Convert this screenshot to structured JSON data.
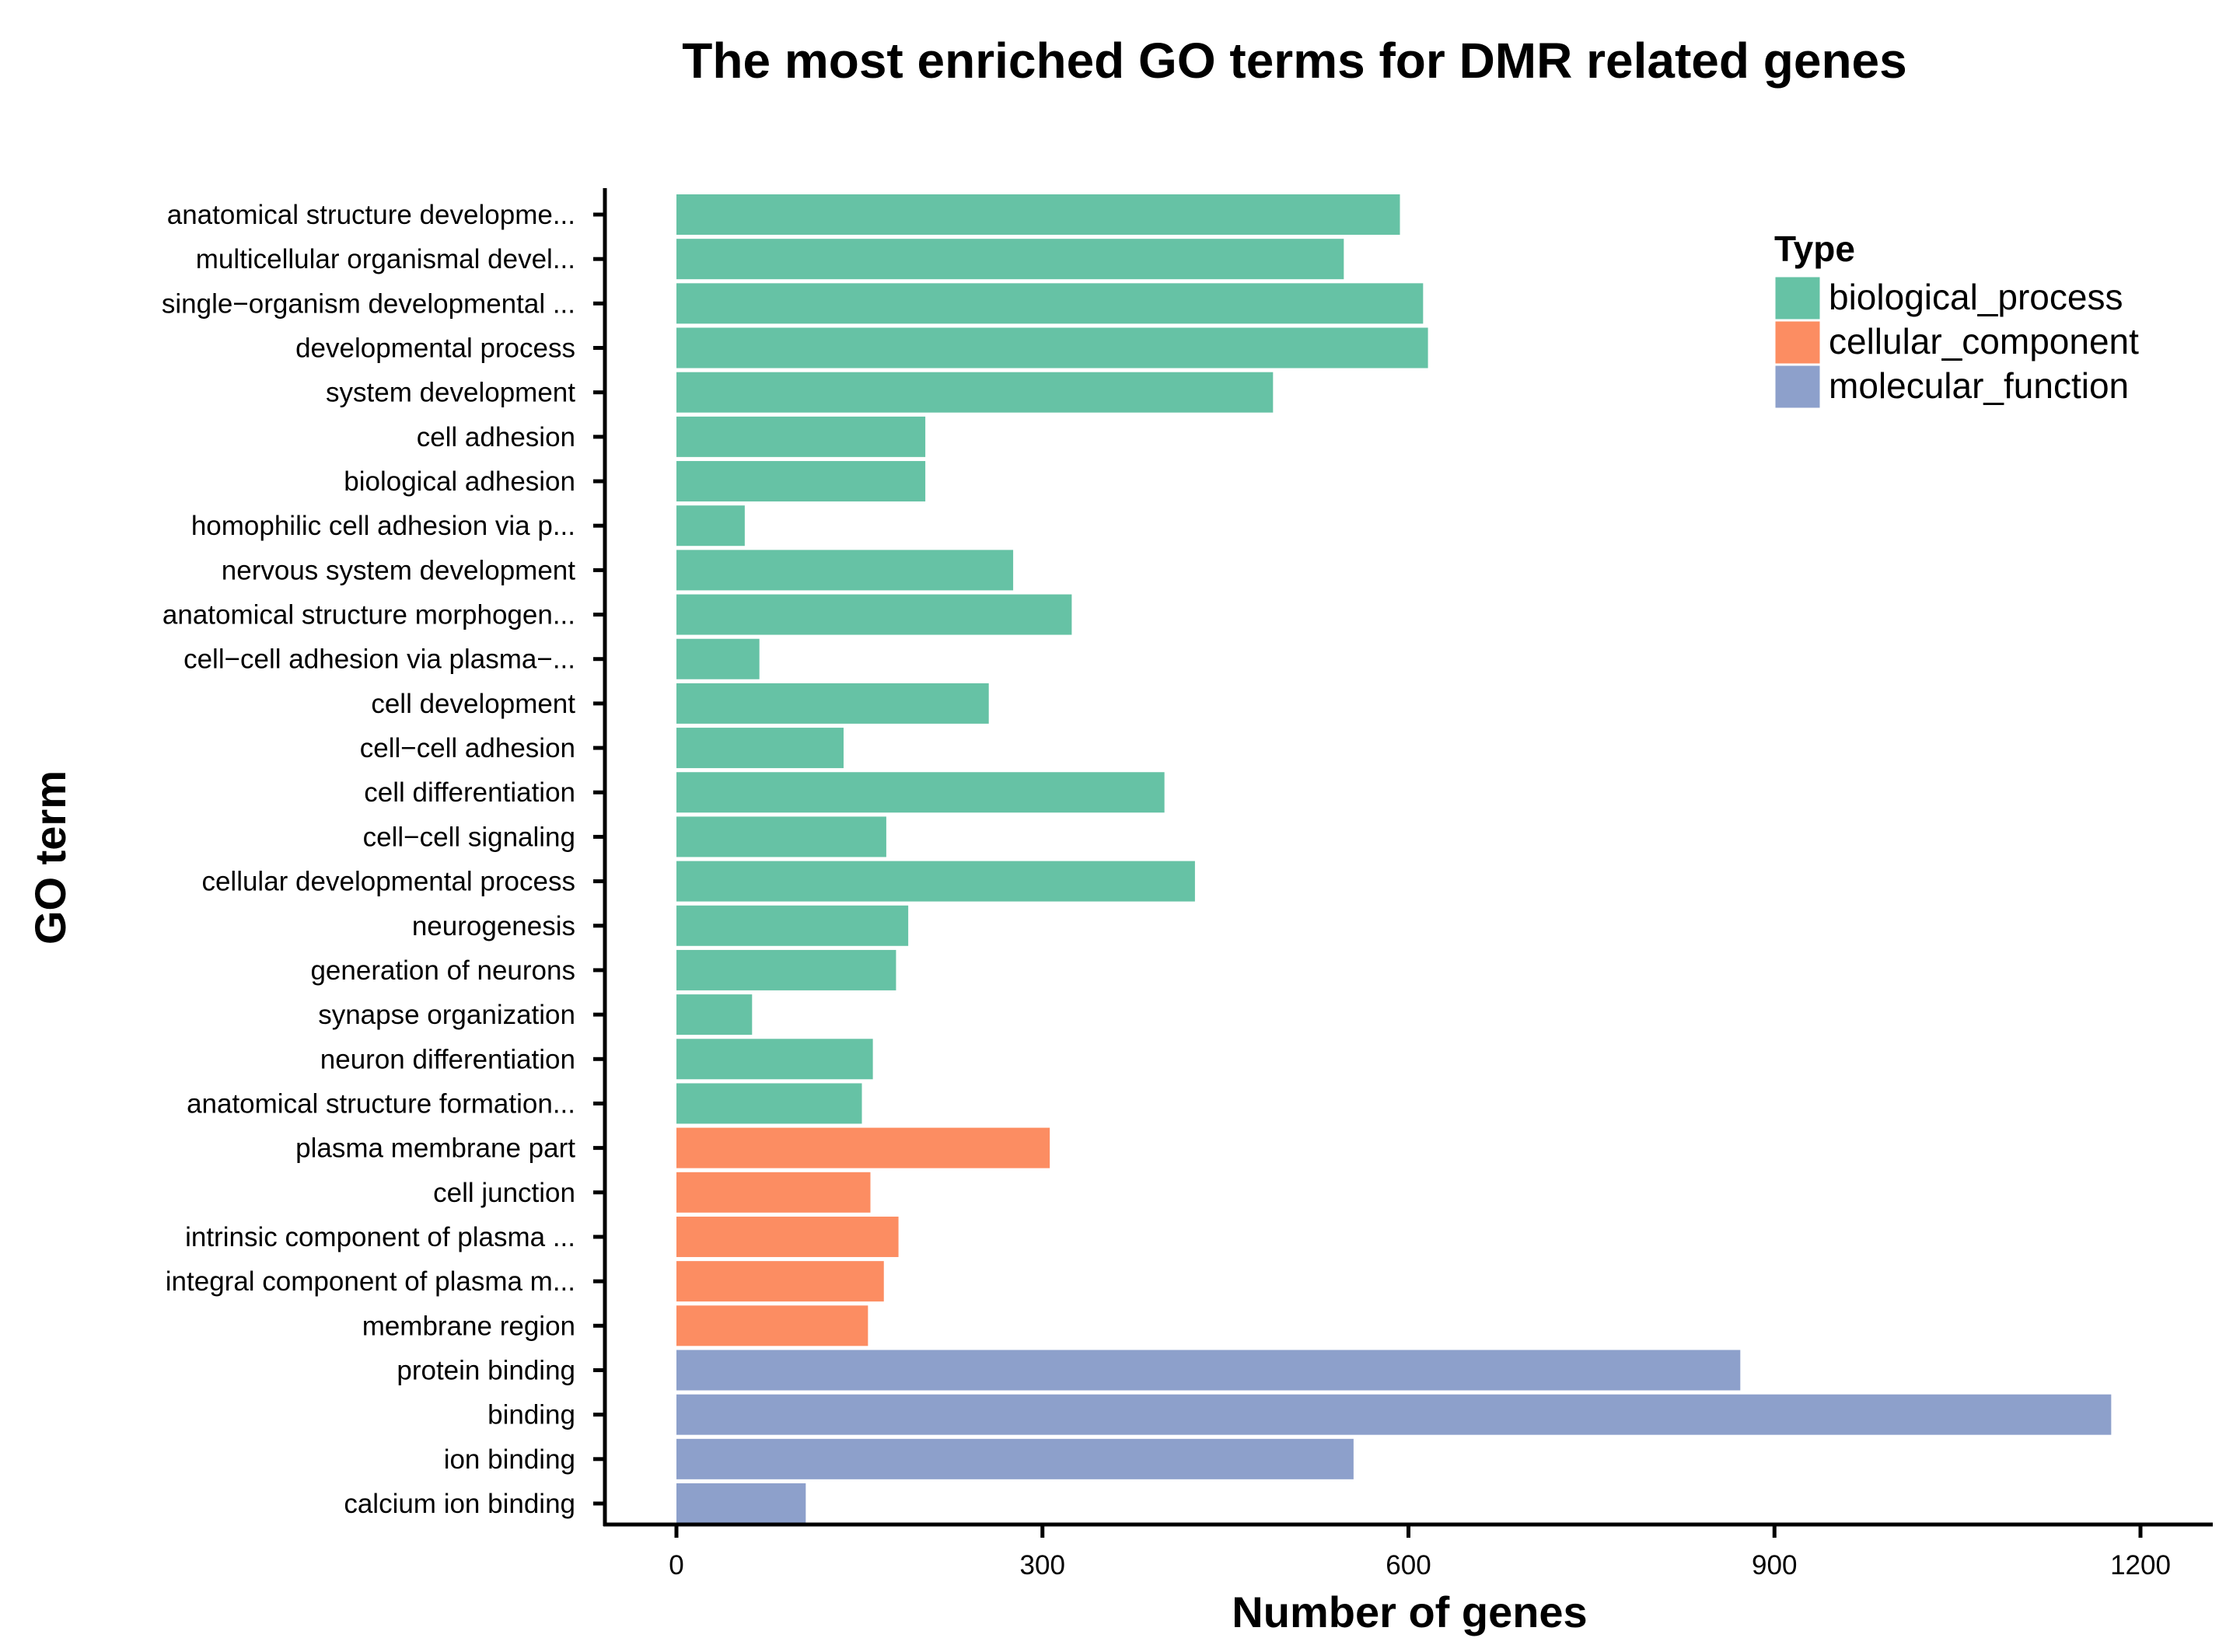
{
  "chart_data": {
    "type": "bar",
    "orientation": "horizontal",
    "title": "The most enriched GO terms for DMR related genes",
    "xlabel": "Number of genes",
    "ylabel": "GO term",
    "xlim": [
      0,
      1200
    ],
    "xticks": [
      "0",
      "300",
      "600",
      "900",
      "1200"
    ],
    "xtick_values": [
      0,
      300,
      600,
      900,
      1200
    ],
    "grid": false,
    "legend": {
      "title": "Type",
      "placement": "top-right",
      "entries": [
        {
          "name": "biological_process",
          "color": "#66c2a5"
        },
        {
          "name": "cellular_component",
          "color": "#fc8d62"
        },
        {
          "name": "molecular_function",
          "color": "#8da0cb"
        }
      ]
    },
    "categories": [
      {
        "label": "anatomical structure developme...",
        "value": 593,
        "type": "biological_process"
      },
      {
        "label": "multicellular organismal devel...",
        "value": 547,
        "type": "biological_process"
      },
      {
        "label": "single−organism developmental ...",
        "value": 612,
        "type": "biological_process"
      },
      {
        "label": "developmental process",
        "value": 616,
        "type": "biological_process"
      },
      {
        "label": "system development",
        "value": 489,
        "type": "biological_process"
      },
      {
        "label": "cell adhesion",
        "value": 204,
        "type": "biological_process"
      },
      {
        "label": "biological adhesion",
        "value": 204,
        "type": "biological_process"
      },
      {
        "label": "homophilic cell adhesion via p...",
        "value": 56,
        "type": "biological_process"
      },
      {
        "label": "nervous system development",
        "value": 276,
        "type": "biological_process"
      },
      {
        "label": "anatomical structure morphogen...",
        "value": 324,
        "type": "biological_process"
      },
      {
        "label": "cell−cell adhesion via plasma−...",
        "value": 68,
        "type": "biological_process"
      },
      {
        "label": "cell development",
        "value": 256,
        "type": "biological_process"
      },
      {
        "label": "cell−cell adhesion",
        "value": 137,
        "type": "biological_process"
      },
      {
        "label": "cell differentiation",
        "value": 400,
        "type": "biological_process"
      },
      {
        "label": "cell−cell signaling",
        "value": 172,
        "type": "biological_process"
      },
      {
        "label": "cellular developmental process",
        "value": 425,
        "type": "biological_process"
      },
      {
        "label": "neurogenesis",
        "value": 190,
        "type": "biological_process"
      },
      {
        "label": "generation of neurons",
        "value": 180,
        "type": "biological_process"
      },
      {
        "label": "synapse organization",
        "value": 62,
        "type": "biological_process"
      },
      {
        "label": "neuron differentiation",
        "value": 161,
        "type": "biological_process"
      },
      {
        "label": "anatomical structure formation...",
        "value": 152,
        "type": "biological_process"
      },
      {
        "label": "plasma membrane part",
        "value": 306,
        "type": "cellular_component"
      },
      {
        "label": "cell junction",
        "value": 159,
        "type": "cellular_component"
      },
      {
        "label": "intrinsic component of plasma ...",
        "value": 182,
        "type": "cellular_component"
      },
      {
        "label": "integral component of plasma m...",
        "value": 170,
        "type": "cellular_component"
      },
      {
        "label": "membrane region",
        "value": 157,
        "type": "cellular_component"
      },
      {
        "label": "protein binding",
        "value": 872,
        "type": "molecular_function"
      },
      {
        "label": "binding",
        "value": 1176,
        "type": "molecular_function"
      },
      {
        "label": "ion binding",
        "value": 555,
        "type": "molecular_function"
      },
      {
        "label": "calcium ion binding",
        "value": 106,
        "type": "molecular_function"
      }
    ]
  }
}
